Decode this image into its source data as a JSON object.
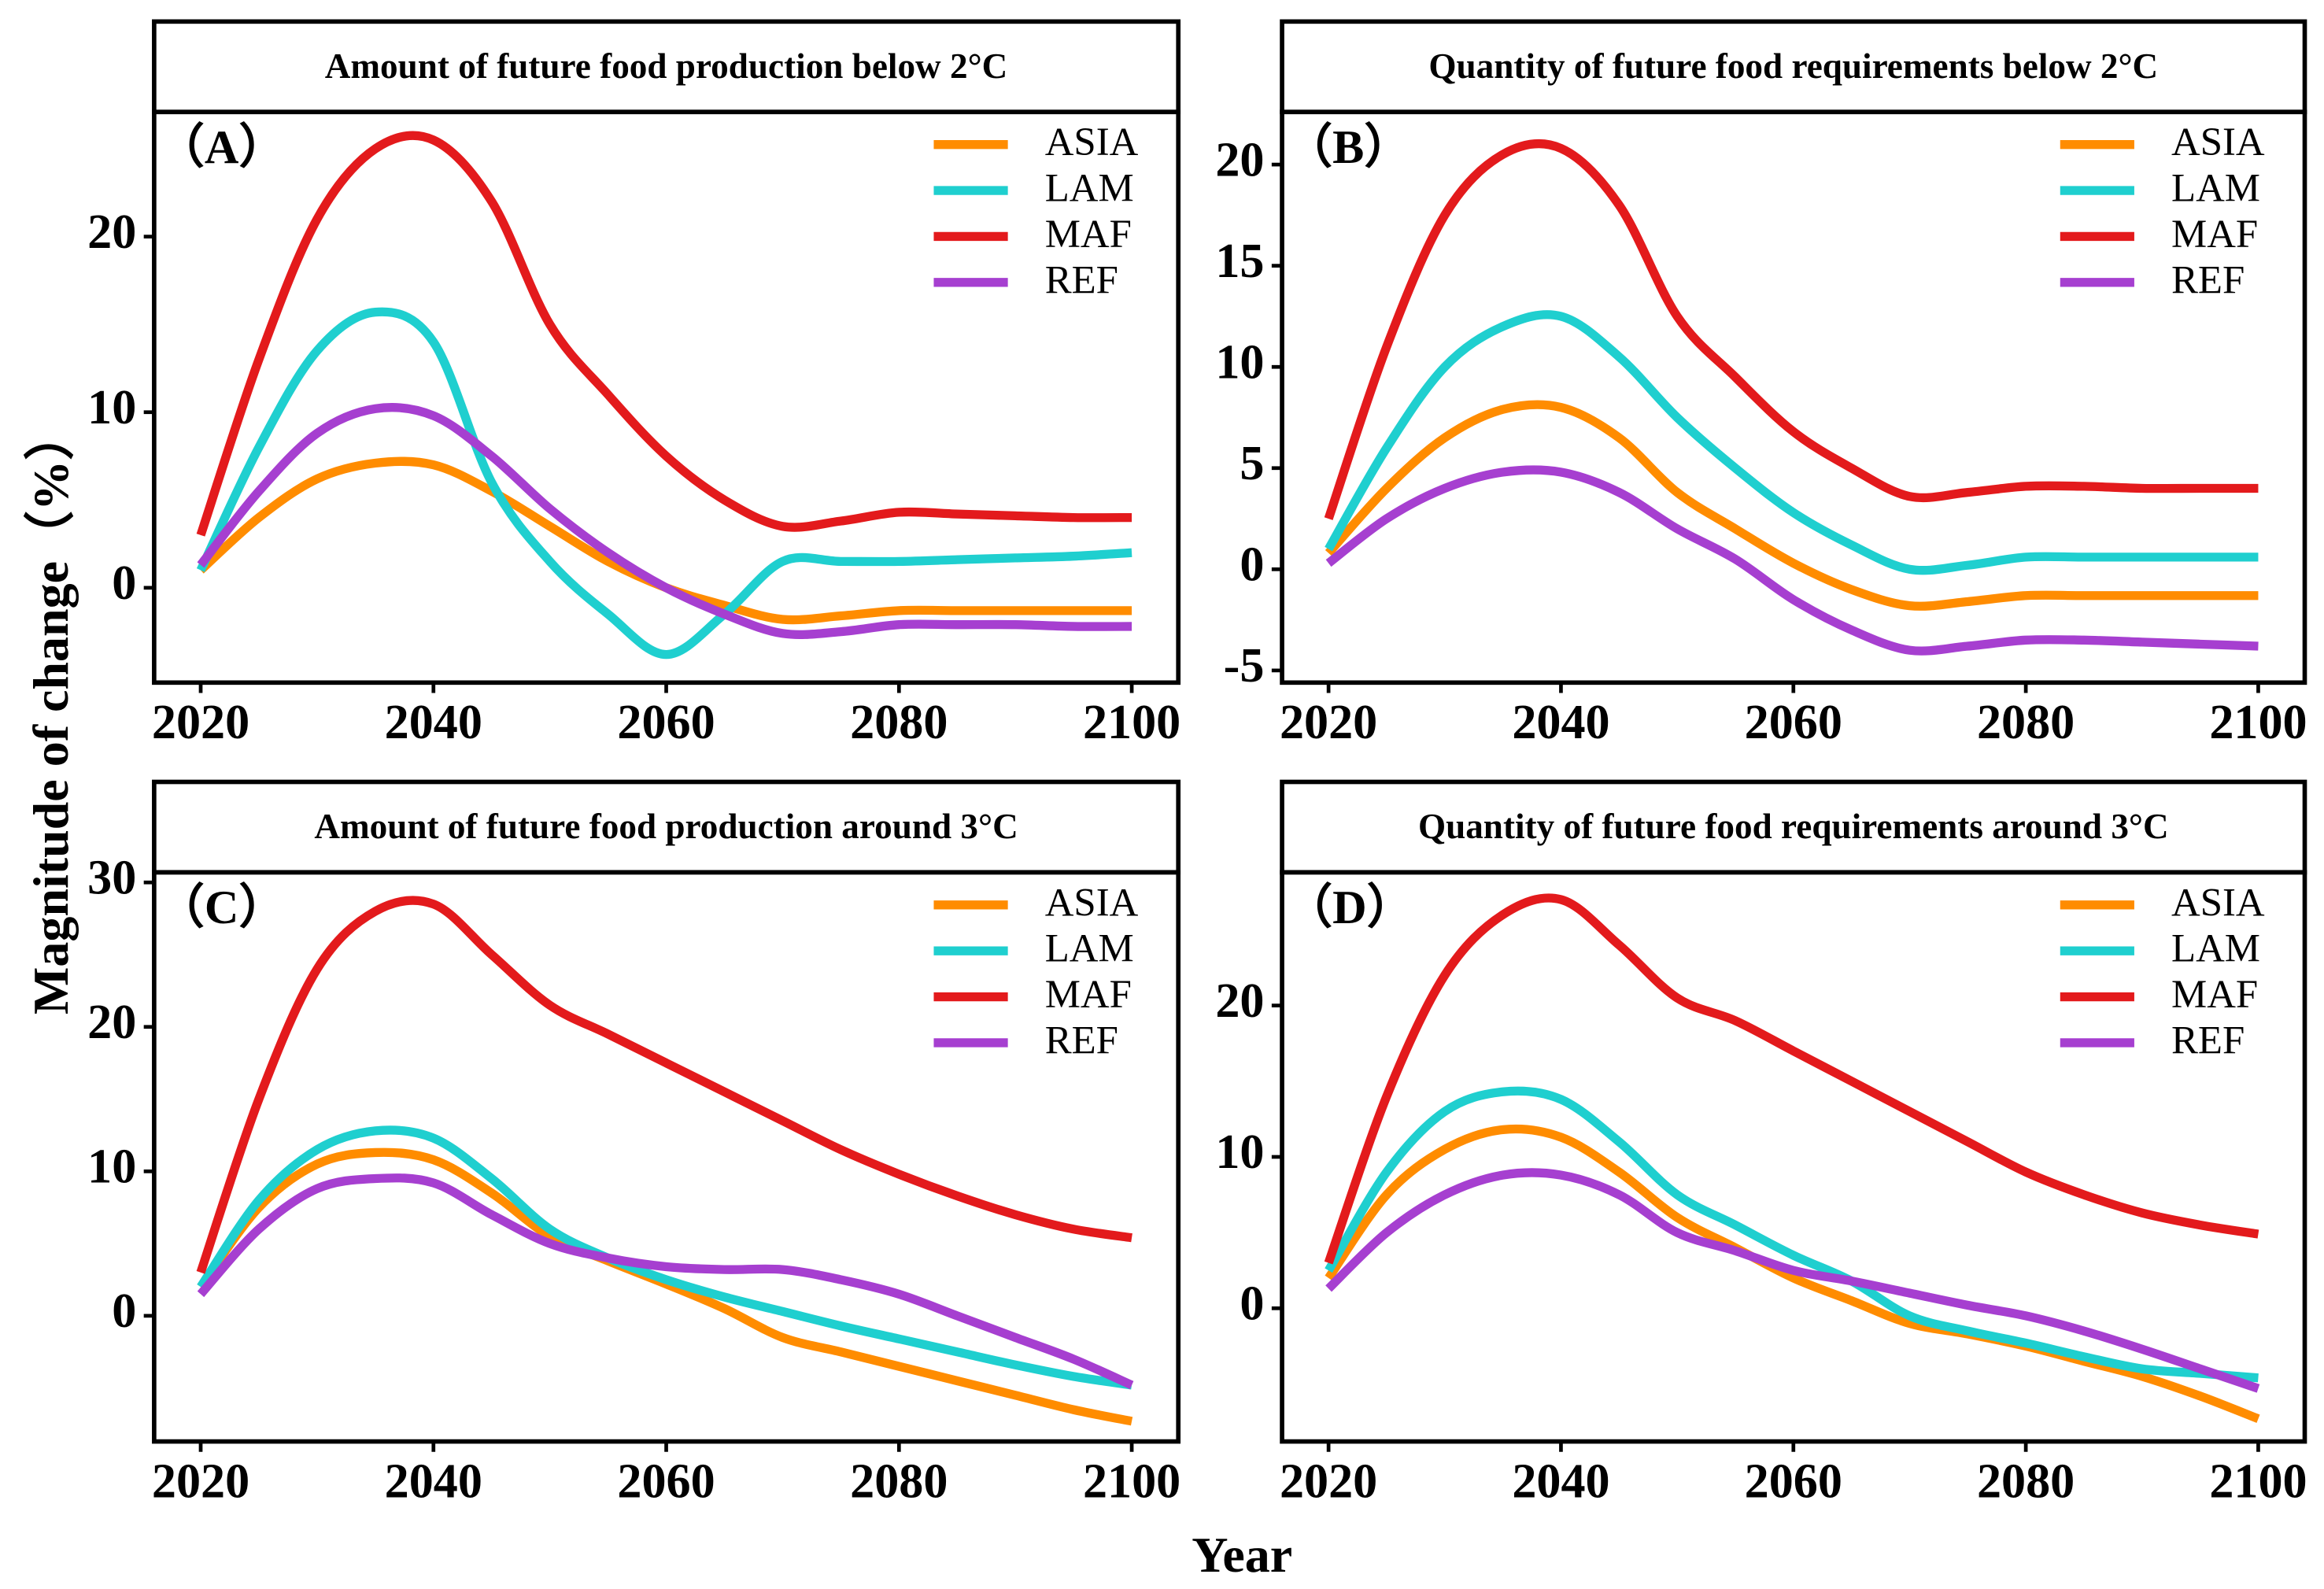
{
  "figure": {
    "ylabel": "Magnitude of change（%）",
    "xlabel": "Year"
  },
  "chart_data": [
    {
      "type": "line",
      "title": "Amount of future food production below 2°C",
      "panel": "（A）",
      "x": [
        2020,
        2025,
        2030,
        2035,
        2040,
        2045,
        2050,
        2055,
        2060,
        2065,
        2070,
        2075,
        2080,
        2085,
        2090,
        2095,
        2100
      ],
      "xlim": [
        2016,
        2104
      ],
      "xticks": [
        2020,
        2040,
        2060,
        2080,
        2100
      ],
      "ylim": [
        -5.4,
        27.1
      ],
      "yticks": [
        0,
        10,
        20
      ],
      "legend": "upper right",
      "series": [
        {
          "name": "ASIA",
          "color": "#ff8c00",
          "values": [
            1,
            4,
            6.2,
            7.1,
            7,
            5.5,
            3.5,
            1.5,
            0,
            -1,
            -1.8,
            -1.6,
            -1.3,
            -1.3,
            -1.3,
            -1.3,
            -1.3
          ]
        },
        {
          "name": "LAM",
          "color": "#1fcfcf",
          "values": [
            1,
            8,
            13.5,
            15.7,
            14,
            6,
            1.5,
            -1.5,
            -3.8,
            -1.5,
            1.5,
            1.5,
            1.5,
            1.6,
            1.7,
            1.8,
            2.0
          ]
        },
        {
          "name": "MAF",
          "color": "#e31a1c",
          "values": [
            3,
            13,
            21,
            25,
            25.5,
            22,
            15,
            11,
            7.5,
            5,
            3.5,
            3.8,
            4.3,
            4.2,
            4.1,
            4.0,
            4.0
          ]
        },
        {
          "name": "REF",
          "color": "#a63fd0",
          "values": [
            1.3,
            5.5,
            8.8,
            10.2,
            9.8,
            7.5,
            4.5,
            2,
            0,
            -1.5,
            -2.6,
            -2.5,
            -2.1,
            -2.1,
            -2.1,
            -2.2,
            -2.2
          ]
        }
      ]
    },
    {
      "type": "line",
      "title": "Quantity of future food requirements below 2°C",
      "panel": "（B）",
      "x": [
        2020,
        2025,
        2030,
        2035,
        2040,
        2045,
        2050,
        2055,
        2060,
        2065,
        2070,
        2075,
        2080,
        2085,
        2090,
        2095,
        2100
      ],
      "xlim": [
        2016,
        2104
      ],
      "xticks": [
        2020,
        2040,
        2060,
        2080,
        2100
      ],
      "ylim": [
        -5.6,
        22.6
      ],
      "yticks": [
        -5,
        0,
        5,
        10,
        15,
        20
      ],
      "legend": "upper right",
      "series": [
        {
          "name": "ASIA",
          "color": "#ff8c00",
          "values": [
            0.8,
            4,
            6.5,
            7.9,
            8,
            6.5,
            3.8,
            2,
            0.3,
            -1,
            -1.8,
            -1.6,
            -1.3,
            -1.3,
            -1.3,
            -1.3,
            -1.3
          ]
        },
        {
          "name": "LAM",
          "color": "#1fcfcf",
          "values": [
            1,
            6,
            10,
            12,
            12.5,
            10.5,
            7.5,
            5,
            2.8,
            1.2,
            0,
            0.2,
            0.6,
            0.6,
            0.6,
            0.6,
            0.6
          ]
        },
        {
          "name": "MAF",
          "color": "#e31a1c",
          "values": [
            2.5,
            11,
            17.5,
            20.5,
            20.8,
            18,
            12.5,
            9.5,
            6.8,
            5,
            3.6,
            3.8,
            4.1,
            4.1,
            4.0,
            4.0,
            4.0
          ]
        },
        {
          "name": "REF",
          "color": "#a63fd0",
          "values": [
            0.3,
            2.5,
            4,
            4.8,
            4.8,
            3.8,
            2,
            0.5,
            -1.5,
            -3,
            -4,
            -3.8,
            -3.5,
            -3.5,
            -3.6,
            -3.7,
            -3.8
          ]
        }
      ]
    },
    {
      "type": "line",
      "title": "Amount of future food production around  3°C",
      "panel": "（C）",
      "x": [
        2020,
        2025,
        2030,
        2035,
        2040,
        2045,
        2050,
        2055,
        2060,
        2065,
        2070,
        2075,
        2080,
        2085,
        2090,
        2095,
        2100
      ],
      "xlim": [
        2016,
        2104
      ],
      "xticks": [
        2020,
        2040,
        2060,
        2080,
        2100
      ],
      "ylim": [
        -8.7,
        30.7
      ],
      "yticks": [
        0,
        10,
        20,
        30
      ],
      "legend": "upper right",
      "series": [
        {
          "name": "ASIA",
          "color": "#ff8c00",
          "values": [
            2,
            7.5,
            10.5,
            11.3,
            10.8,
            8.5,
            5.5,
            3.8,
            2.2,
            0.5,
            -1.5,
            -2.5,
            -3.5,
            -4.5,
            -5.5,
            -6.5,
            -7.3
          ]
        },
        {
          "name": "LAM",
          "color": "#1fcfcf",
          "values": [
            2,
            8,
            11.5,
            12.8,
            12.3,
            9.5,
            6,
            4,
            2.5,
            1.3,
            0.3,
            -0.7,
            -1.6,
            -2.5,
            -3.4,
            -4.2,
            -4.8
          ]
        },
        {
          "name": "MAF",
          "color": "#e31a1c",
          "values": [
            3,
            15,
            24,
            28,
            28.5,
            25,
            21.5,
            19.5,
            17.5,
            15.5,
            13.5,
            11.5,
            9.8,
            8.3,
            7,
            6,
            5.4
          ]
        },
        {
          "name": "REF",
          "color": "#a63fd0",
          "values": [
            1.5,
            6,
            8.8,
            9.5,
            9.2,
            7,
            5,
            4,
            3.4,
            3.2,
            3.2,
            2.5,
            1.5,
            0,
            -1.5,
            -3,
            -4.8
          ]
        }
      ]
    },
    {
      "type": "line",
      "title": "Quantity of future food requirements around 3°C",
      "panel": "（D）",
      "x": [
        2020,
        2025,
        2030,
        2035,
        2040,
        2045,
        2050,
        2055,
        2060,
        2065,
        2070,
        2075,
        2080,
        2085,
        2090,
        2095,
        2100
      ],
      "xlim": [
        2016,
        2104
      ],
      "xticks": [
        2020,
        2040,
        2060,
        2080,
        2100
      ],
      "ylim": [
        -8.8,
        28.8
      ],
      "yticks": [
        0,
        10,
        20
      ],
      "legend": "upper right",
      "series": [
        {
          "name": "ASIA",
          "color": "#ff8c00",
          "values": [
            2,
            7.5,
            10.5,
            11.8,
            11.3,
            9,
            6,
            4,
            2,
            0.5,
            -1,
            -1.7,
            -2.5,
            -3.5,
            -4.5,
            -5.8,
            -7.3
          ]
        },
        {
          "name": "LAM",
          "color": "#1fcfcf",
          "values": [
            2.5,
            9,
            13,
            14.3,
            13.8,
            11,
            7.5,
            5.5,
            3.5,
            1.8,
            -0.5,
            -1.5,
            -2.3,
            -3.2,
            -4,
            -4.3,
            -4.6
          ]
        },
        {
          "name": "MAF",
          "color": "#e31a1c",
          "values": [
            3,
            14,
            22,
            26,
            27,
            24,
            20.5,
            19,
            17,
            15,
            13,
            11,
            9,
            7.5,
            6.3,
            5.5,
            4.9
          ]
        },
        {
          "name": "REF",
          "color": "#a63fd0",
          "values": [
            1.3,
            5,
            7.5,
            8.8,
            8.8,
            7.5,
            5,
            3.8,
            2.5,
            1.8,
            1,
            0.2,
            -0.5,
            -1.5,
            -2.7,
            -4,
            -5.3
          ]
        }
      ]
    }
  ]
}
